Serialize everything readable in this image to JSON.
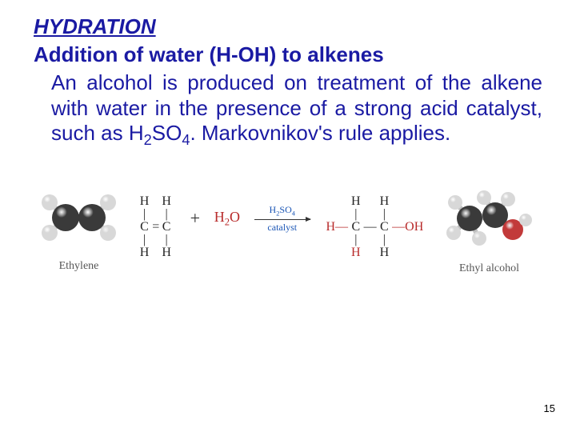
{
  "title": "HYDRATION",
  "subtitle": "Addition of water (H-OH) to alkenes",
  "body_html": "An alcohol is produced on treatment of the alkene with water in the presence of a strong acid catalyst, such as H<sub>2</sub>SO<sub>4</sub>. Markovnikov's rule applies.",
  "page_number": "15",
  "diagram": {
    "ethylene_caption": "Ethylene",
    "ethanol_caption": "Ethyl alcohol",
    "plus": "+",
    "h2o_html": "H<sub>2</sub>O",
    "arrow_top_html": "H<sub>2</sub>SO<sub>4</sub>",
    "arrow_bottom": "catalyst",
    "colors": {
      "carbon": "#3a3a3a",
      "hydrogen": "#d8d8d8",
      "oxygen": "#c23a3a",
      "bond": "#bfbfbf",
      "text_blue": "#1a55b5",
      "text_red": "#b82a2a"
    },
    "ethylene_struct": {
      "top": [
        "",
        "H",
        "",
        "H",
        ""
      ],
      "mid": [
        "",
        "|",
        "",
        "|",
        ""
      ],
      "center": [
        "",
        "C",
        "=",
        "C",
        ""
      ],
      "mid2": [
        "",
        "|",
        "",
        "|",
        ""
      ],
      "bot": [
        "",
        "H",
        "",
        "H",
        ""
      ]
    },
    "ethanol_struct": {
      "top": [
        "",
        "H",
        "",
        "H",
        ""
      ],
      "mid": [
        "",
        "|",
        "",
        "|",
        ""
      ],
      "center": [
        "H—",
        "C",
        "—",
        "C",
        "—OH"
      ],
      "mid2": [
        "",
        "|",
        "",
        "|",
        ""
      ],
      "bot": [
        "",
        "H",
        "",
        "H",
        ""
      ]
    },
    "ethanol_red_positions": {
      "row": "center",
      "cols": [
        0,
        4
      ],
      "bot_red_col": 1
    }
  }
}
